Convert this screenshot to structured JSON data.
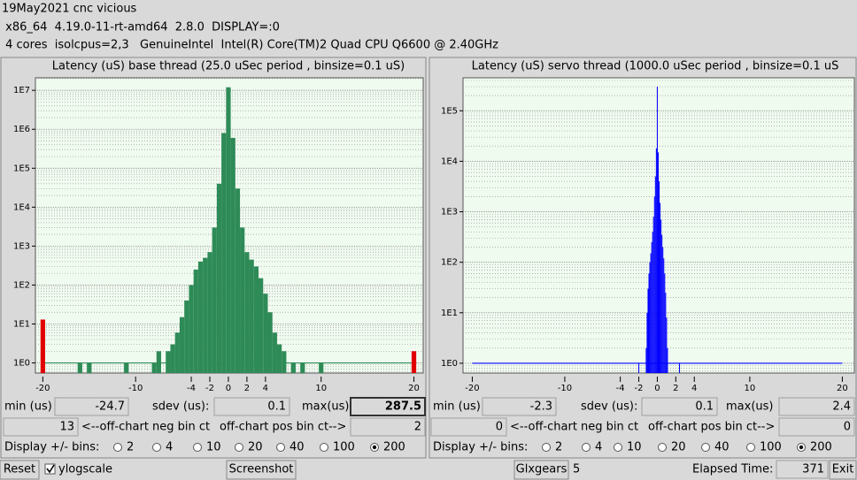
{
  "header": {
    "lines": [
      "19May2021 cnc vicious",
      " x86_64  4.19.0-11-rt-amd64  2.8.0  DISPLAY=:0",
      " 4 cores  isolcpus=2,3   GenuineIntel  Intel(R) Core(TM)2 Quad CPU Q6600 @ 2.40GHz"
    ]
  },
  "chart_data": [
    {
      "type": "bar",
      "title": "Latency (uS) base thread (25.0 uSec period , binsize=0.1 uS)",
      "log_y": true,
      "grid": true,
      "xlim": [
        -20.8,
        21
      ],
      "ylim": [
        0.55,
        21000000
      ],
      "xticks": [
        -20,
        -10,
        -4,
        -2,
        0,
        2,
        4,
        10,
        20
      ],
      "yticks": [
        {
          "value": 1,
          "label": "1E0"
        },
        {
          "value": 10,
          "label": "1E1"
        },
        {
          "value": 100,
          "label": "1E2"
        },
        {
          "value": 1000,
          "label": "1E3"
        },
        {
          "value": 10000,
          "label": "1E4"
        },
        {
          "value": 100000,
          "label": "1E5"
        },
        {
          "value": 1000000,
          "label": "1E6"
        },
        {
          "value": 10000000,
          "label": "1E7"
        }
      ],
      "series": [
        {
          "color": "#2e8b57",
          "x": [
            -16,
            -15,
            -11,
            -8,
            -7.5,
            -6.5,
            -6,
            -5.5,
            -5,
            -4.5,
            -4,
            -3.5,
            -3,
            -2.5,
            -2,
            -1.5,
            -1,
            -0.5,
            0,
            0.5,
            1,
            1.5,
            2,
            2.5,
            3,
            3.5,
            4,
            4.5,
            5,
            5.5,
            6,
            7,
            8,
            10
          ],
          "values": [
            1,
            1,
            1,
            1,
            2,
            2,
            3,
            6,
            15,
            40,
            100,
            250,
            400,
            500,
            700,
            3000,
            40000,
            800000,
            12000000,
            600000,
            30000,
            3000,
            700,
            450,
            300,
            150,
            60,
            20,
            6,
            3,
            2,
            1,
            1,
            1
          ]
        },
        {
          "color": "#e00000",
          "x": [
            -20,
            20
          ],
          "values": [
            13,
            2
          ]
        }
      ]
    },
    {
      "type": "bar",
      "title": "Latency (uS) servo thread (1000.0 uSec period , binsize=0.1 uS",
      "log_y": true,
      "grid": true,
      "xlim": [
        -21,
        21.3
      ],
      "ylim": [
        0.64,
        450000
      ],
      "xticks": [
        -20,
        -10,
        -4,
        -2,
        0,
        2,
        4,
        10,
        20
      ],
      "yticks": [
        {
          "value": 1,
          "label": "1E0"
        },
        {
          "value": 10,
          "label": "1E1"
        },
        {
          "value": 100,
          "label": "1E2"
        },
        {
          "value": 1000,
          "label": "1E3"
        },
        {
          "value": 10000,
          "label": "1E4"
        },
        {
          "value": 100000,
          "label": "1E5"
        }
      ],
      "series": [
        {
          "color": "#0000ff",
          "x": [
            -2,
            -1.2,
            -1.1,
            -1,
            -0.9,
            -0.8,
            -0.7,
            -0.6,
            -0.5,
            -0.4,
            -0.3,
            -0.2,
            -0.1,
            0,
            0.1,
            0.2,
            0.3,
            0.4,
            0.5,
            0.6,
            0.7,
            0.8,
            0.9,
            1,
            1.1,
            2.4
          ],
          "values": [
            1,
            2,
            10,
            30,
            60,
            100,
            150,
            250,
            400,
            800,
            2000,
            5000,
            18000,
            300000,
            15000,
            4000,
            1500,
            700,
            350,
            200,
            120,
            60,
            25,
            8,
            2,
            1
          ]
        }
      ]
    }
  ],
  "panels": [
    {
      "min_label": "min (us)",
      "min": -24.7,
      "sdev_label": "sdev (us):",
      "sdev": 0.1,
      "max_label": "max(us)",
      "max": 287.5,
      "neg_count": 13,
      "neg_label": "<--off-chart neg bin ct",
      "pos_label": "off-chart pos bin ct-->",
      "pos_count": 2,
      "bins_label": "Display +/- bins:",
      "bins_options": [
        2,
        4,
        10,
        20,
        40,
        100,
        200
      ],
      "bins_selected": 200
    },
    {
      "min_label": "min (us)",
      "min": -2.3,
      "sdev_label": "sdev (us):",
      "sdev": 0.1,
      "max_label": "max(us)",
      "max": 2.4,
      "neg_count": 0,
      "neg_label": "<--off-chart neg bin ct",
      "pos_label": "off-chart pos bin ct-->",
      "pos_count": 0,
      "bins_label": "Display +/- bins:",
      "bins_options": [
        2,
        4,
        10,
        20,
        40,
        100,
        200
      ],
      "bins_selected": 200
    }
  ],
  "footer": {
    "reset": "Reset",
    "ylogscale": "ylogscale",
    "ylogscale_checked": true,
    "screenshot": "Screenshot",
    "glxgears": "Glxgears",
    "glxgears_count": 5,
    "elapsed_label": "Elapsed Time:",
    "elapsed": 371,
    "exit": "Exit"
  }
}
